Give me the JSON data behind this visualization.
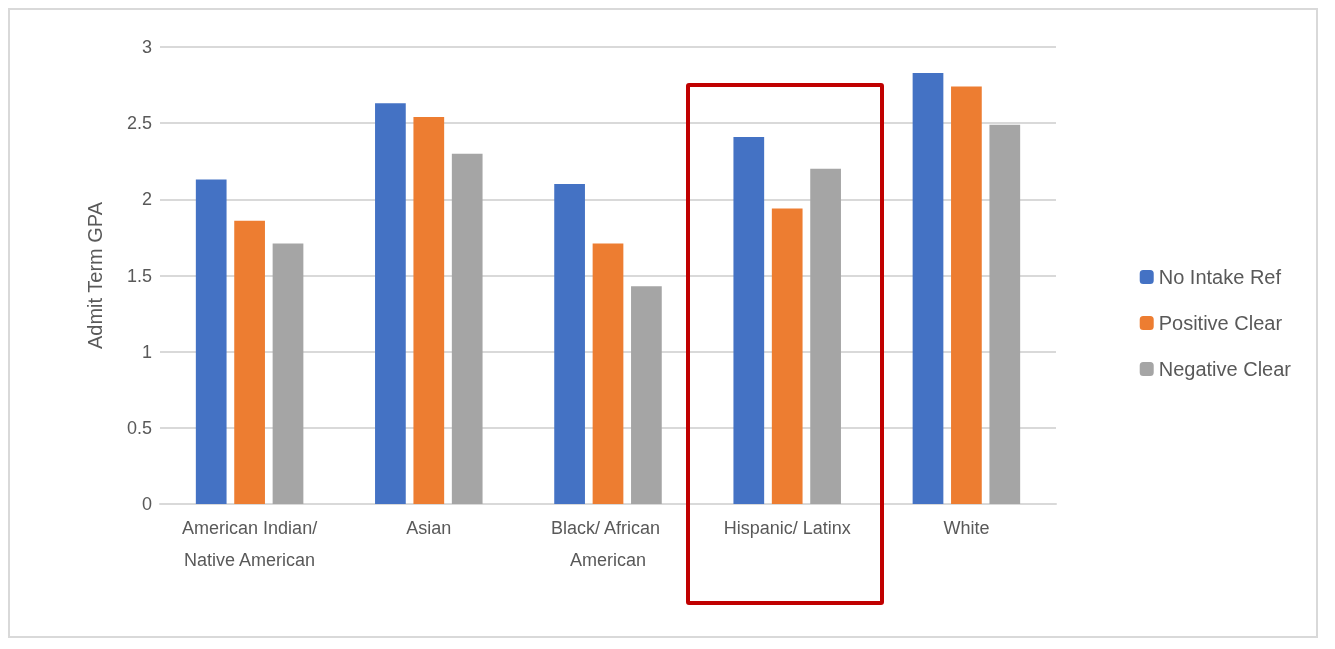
{
  "chart_data": {
    "type": "bar",
    "ylabel": "Admit Term GPA",
    "categories": [
      "American Indian/Native American",
      "Asian",
      "Black/ African American",
      "Hispanic/ Latinx",
      "White"
    ],
    "series": [
      {
        "name": "No Intake Ref",
        "color": "#4472c4",
        "values": [
          2.13,
          2.63,
          2.1,
          2.41,
          2.83
        ]
      },
      {
        "name": "Positive Clear",
        "color": "#ed7d31",
        "values": [
          1.86,
          2.54,
          1.71,
          1.94,
          2.74
        ]
      },
      {
        "name": "Negative Clear",
        "color": "#a5a5a5",
        "values": [
          1.71,
          2.3,
          1.43,
          2.2,
          2.49
        ]
      }
    ],
    "ylim": [
      0,
      3
    ],
    "yticks": [
      0,
      0.5,
      1,
      1.5,
      2,
      2.5,
      3
    ],
    "grid": "y",
    "legend": "right"
  }
}
